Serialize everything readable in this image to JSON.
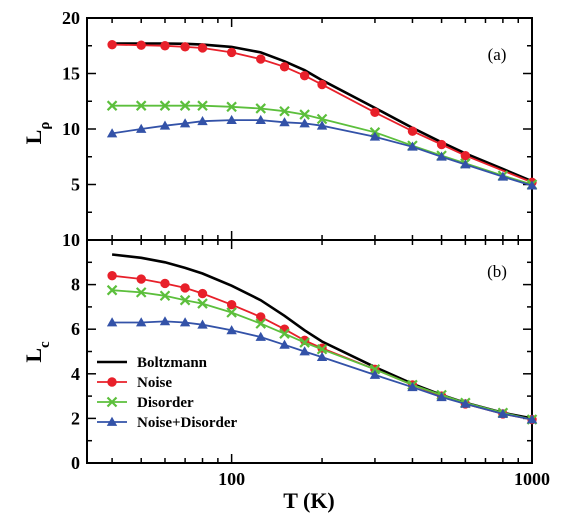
{
  "chart_data": [
    {
      "type": "line",
      "panel": "(a)",
      "ylabel_main": "L",
      "ylabel_sub": "ρ",
      "xlabel": "",
      "xscale": "log",
      "xlim": [
        33,
        1000
      ],
      "ylim": [
        0,
        20
      ],
      "yticks": [
        "5",
        "10",
        "15",
        "20"
      ],
      "xticks": [],
      "grid": false,
      "series": [
        {
          "name": "Boltzmann",
          "color": "#000000",
          "marker": "none",
          "x": [
            40,
            50,
            60,
            70,
            80,
            100,
            125,
            150,
            175,
            200,
            300,
            400,
            500,
            600,
            800,
            1000
          ],
          "y": [
            17.7,
            17.7,
            17.7,
            17.68,
            17.6,
            17.4,
            16.9,
            16.1,
            15.3,
            14.4,
            11.9,
            10.1,
            8.8,
            7.8,
            6.4,
            5.3
          ]
        },
        {
          "name": "Noise",
          "color": "#e8202a",
          "marker": "circle",
          "x": [
            40,
            50,
            60,
            70,
            80,
            100,
            125,
            150,
            175,
            200,
            300,
            400,
            500,
            600,
            1000
          ],
          "y": [
            17.6,
            17.55,
            17.5,
            17.4,
            17.3,
            16.9,
            16.3,
            15.6,
            14.8,
            14.0,
            11.5,
            9.8,
            8.6,
            7.6,
            5.2
          ]
        },
        {
          "name": "Disorder",
          "color": "#5cbf3c",
          "marker": "cross",
          "x": [
            40,
            50,
            60,
            70,
            80,
            100,
            125,
            150,
            175,
            200,
            300,
            400,
            500,
            600,
            800,
            1000
          ],
          "y": [
            12.1,
            12.1,
            12.1,
            12.1,
            12.1,
            12.0,
            11.85,
            11.6,
            11.3,
            10.9,
            9.7,
            8.5,
            7.6,
            6.9,
            5.8,
            5.0
          ]
        },
        {
          "name": "Noise+Disorder",
          "color": "#3352a8",
          "marker": "triangle",
          "x": [
            40,
            50,
            60,
            70,
            80,
            100,
            125,
            150,
            175,
            200,
            300,
            400,
            500,
            600,
            800,
            1000
          ],
          "y": [
            9.6,
            10.0,
            10.3,
            10.5,
            10.7,
            10.8,
            10.8,
            10.6,
            10.5,
            10.3,
            9.3,
            8.4,
            7.5,
            6.8,
            5.7,
            4.9
          ]
        }
      ]
    },
    {
      "type": "line",
      "panel": "(b)",
      "ylabel_main": "L",
      "ylabel_sub": "c",
      "xlabel": "T (K)",
      "xscale": "log",
      "xlim": [
        33,
        1000
      ],
      "ylim": [
        0,
        10
      ],
      "yticks": [
        "0",
        "2",
        "4",
        "6",
        "8",
        "10"
      ],
      "xticks": [
        "100",
        "1000"
      ],
      "grid": false,
      "legend": "lower-left",
      "series": [
        {
          "name": "Boltzmann",
          "color": "#000000",
          "marker": "none",
          "x": [
            40,
            50,
            60,
            70,
            80,
            100,
            125,
            150,
            175,
            200,
            300,
            400,
            500,
            600,
            800,
            1000
          ],
          "y": [
            9.35,
            9.2,
            9.0,
            8.75,
            8.5,
            7.95,
            7.3,
            6.6,
            5.95,
            5.45,
            4.3,
            3.55,
            3.05,
            2.7,
            2.25,
            2.0
          ]
        },
        {
          "name": "Noise",
          "color": "#e8202a",
          "marker": "circle",
          "x": [
            40,
            50,
            60,
            70,
            80,
            100,
            125,
            150,
            175,
            200,
            300,
            400,
            500,
            600,
            800,
            1000
          ],
          "y": [
            8.4,
            8.25,
            8.05,
            7.85,
            7.6,
            7.1,
            6.55,
            6.0,
            5.5,
            5.15,
            4.2,
            3.5,
            3.0,
            2.65,
            2.2,
            1.95
          ]
        },
        {
          "name": "Disorder",
          "color": "#5cbf3c",
          "marker": "cross",
          "x": [
            40,
            50,
            60,
            70,
            80,
            100,
            125,
            150,
            175,
            200,
            300,
            400,
            500,
            600,
            800,
            1000
          ],
          "y": [
            7.75,
            7.65,
            7.5,
            7.3,
            7.15,
            6.75,
            6.25,
            5.8,
            5.4,
            5.1,
            4.2,
            3.5,
            3.05,
            2.7,
            2.25,
            1.95
          ]
        },
        {
          "name": "Noise+Disorder",
          "color": "#3352a8",
          "marker": "triangle",
          "x": [
            40,
            50,
            60,
            70,
            80,
            100,
            125,
            150,
            175,
            200,
            300,
            400,
            500,
            600,
            800,
            1000
          ],
          "y": [
            6.3,
            6.3,
            6.35,
            6.3,
            6.2,
            5.95,
            5.65,
            5.3,
            5.0,
            4.75,
            3.95,
            3.4,
            2.95,
            2.65,
            2.2,
            1.95
          ]
        }
      ]
    }
  ]
}
